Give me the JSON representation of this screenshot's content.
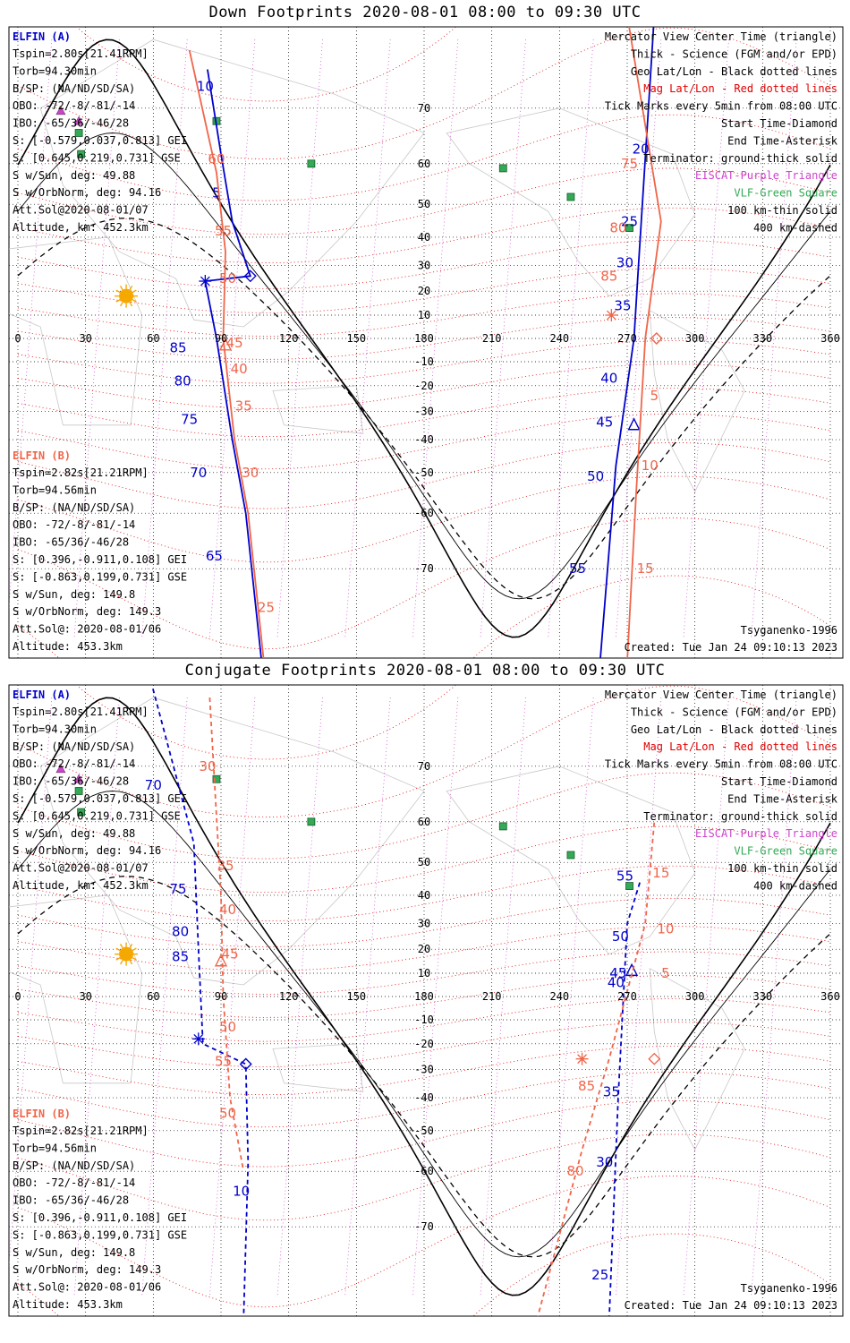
{
  "colors": {
    "elfin_a": "#0000cc",
    "elfin_b": "#f0654a",
    "mag_grid": "#e00000",
    "eiscat": "#cc44cc",
    "vlf": "#33aa55",
    "sun": "#f5a800",
    "geo_grid": "#000000"
  },
  "left_info_a": {
    "title": "ELFIN (A)",
    "lines": [
      "Tspin=2.80s[21.41RPM]",
      "Torb=94.30min",
      "B/SP: (NA/ND/SD/SA)",
      "OBO: -72/-8/-81/-14",
      "IBO: -65/36/-46/28",
      "S: [-0.579,0.037,0.813] GEI",
      "S: [0.645,0.219,0.731] GSE",
      "S w/Sun, deg: 49.88",
      "S w/OrbNorm, deg: 94.16",
      "Att.Sol@2020-08-01/07",
      "Altitude, km: 452.3km"
    ]
  },
  "left_info_b": {
    "title": "ELFIN (B)",
    "lines": [
      "Tspin=2.82s[21.21RPM]",
      "Torb=94.56min",
      "B/SP: (NA/ND/SD/SA)",
      "OBO: -72/-8/-81/-14",
      "IBO: -65/36/-46/28",
      "S: [0.396,-0.911,0.108] GEI",
      "S: [-0.863,0.199,0.731] GSE",
      "S w/Sun, deg: 149.8",
      "S w/OrbNorm, deg: 149.3",
      "Att.Sol@: 2020-08-01/06",
      "Altitude: 453.3km"
    ]
  },
  "legend": [
    {
      "text": "Mercator View Center Time (triangle)",
      "color": "#000000"
    },
    {
      "text": "Thick - Science (FGM and/or EPD)",
      "color": "#000000"
    },
    {
      "text": "Geo Lat/Lon - Black dotted lines",
      "color": "#000000"
    },
    {
      "text": "Mag Lat/Lon - Red dotted lines",
      "color": "#e00000"
    },
    {
      "text": "Tick Marks every 5min from 08:00 UTC",
      "color": "#000000"
    },
    {
      "text": "Start Time-Diamond",
      "color": "#000000"
    },
    {
      "text": "End Time-Asterisk",
      "color": "#000000"
    },
    {
      "text": "Terminator: ground-thick solid",
      "color": "#000000"
    },
    {
      "text": "EISCAT-Purple Triangle",
      "color": "#cc44cc"
    },
    {
      "text": "VLF-Green Square",
      "color": "#33aa55"
    },
    {
      "text": "100 km-thin solid",
      "color": "#000000"
    },
    {
      "text": "400 km-dashed",
      "color": "#000000"
    }
  ],
  "model_label": "Tsyganenko-1996",
  "created_label": "Created: Tue Jan 24 09:10:13 2023",
  "chart_data": [
    {
      "type": "map",
      "title": "Down Footprints 2020-08-01 08:00 to 09:30 UTC",
      "projection": "mercator",
      "xlim": [
        0,
        360
      ],
      "ylim": [
        -80,
        80
      ],
      "lon_ticks": [
        0,
        30,
        60,
        90,
        120,
        150,
        180,
        210,
        240,
        270,
        300,
        330,
        360
      ],
      "lat_ticks": [
        70,
        60,
        50,
        40,
        30,
        20,
        10,
        -10,
        -20,
        -30,
        -40,
        -50,
        -60,
        -70
      ],
      "vlf_sites": [
        [
          88,
          68
        ],
        [
          27,
          66
        ],
        [
          28,
          62
        ],
        [
          130,
          60
        ],
        [
          215,
          59
        ],
        [
          245,
          52
        ],
        [
          271,
          43
        ]
      ],
      "eiscat_sites": [
        [
          19,
          69.6
        ],
        [
          27,
          68
        ]
      ],
      "sun": [
        48,
        18
      ],
      "elfin_a": {
        "track": [
          [
            84,
            75
          ],
          [
            90,
            62
          ],
          [
            95,
            45
          ],
          [
            103,
            26
          ],
          [
            83,
            24
          ],
          [
            88,
            0
          ],
          [
            95,
            -40
          ],
          [
            101,
            -60
          ],
          [
            108,
            -80
          ],
          [
            258,
            -80
          ],
          [
            265,
            -48
          ],
          [
            273,
            0
          ],
          [
            275,
            30
          ],
          [
            282,
            80
          ]
        ],
        "tick_labels": [
          {
            "t": "10",
            "lon": 83,
            "lat": 73
          },
          {
            "t": "5",
            "lon": 88,
            "lat": 53
          },
          {
            "t": "85",
            "lon": 71,
            "lat": -4
          },
          {
            "t": "80",
            "lon": 73,
            "lat": -18
          },
          {
            "t": "75",
            "lon": 76,
            "lat": -33
          },
          {
            "t": "70",
            "lon": 80,
            "lat": -50
          },
          {
            "t": "65",
            "lon": 87,
            "lat": -68
          },
          {
            "t": "55",
            "lon": 248,
            "lat": -70
          },
          {
            "t": "50",
            "lon": 256,
            "lat": -51
          },
          {
            "t": "45",
            "lon": 260,
            "lat": -34
          },
          {
            "t": "40",
            "lon": 262,
            "lat": -17
          },
          {
            "t": "35",
            "lon": 268,
            "lat": 14
          },
          {
            "t": "30",
            "lon": 269,
            "lat": 31
          },
          {
            "t": "25",
            "lon": 271,
            "lat": 45
          },
          {
            "t": "20",
            "lon": 276,
            "lat": 63
          }
        ],
        "start": [
          103,
          26
        ],
        "end": [
          83,
          24
        ],
        "center": [
          273,
          -35
        ]
      },
      "elfin_b": {
        "track": [
          [
            76,
            77
          ],
          [
            88,
            58
          ],
          [
            92,
            35
          ],
          [
            91,
            0
          ],
          [
            96,
            -40
          ],
          [
            102,
            -60
          ],
          [
            109,
            -80
          ],
          [
            270,
            -80
          ],
          [
            274,
            -55
          ],
          [
            278,
            0
          ],
          [
            285,
            45
          ],
          [
            270,
            80
          ]
        ],
        "tick_labels": [
          {
            "t": "60",
            "lon": 88,
            "lat": 61
          },
          {
            "t": "55",
            "lon": 91,
            "lat": 42
          },
          {
            "t": "50",
            "lon": 93,
            "lat": 25
          },
          {
            "t": "45",
            "lon": 96,
            "lat": -2
          },
          {
            "t": "40",
            "lon": 98,
            "lat": -13
          },
          {
            "t": "35",
            "lon": 100,
            "lat": -28
          },
          {
            "t": "30",
            "lon": 103,
            "lat": -50
          },
          {
            "t": "25",
            "lon": 110,
            "lat": -75
          },
          {
            "t": "15",
            "lon": 278,
            "lat": -70
          },
          {
            "t": "10",
            "lon": 280,
            "lat": -48
          },
          {
            "t": "5",
            "lon": 282,
            "lat": -24
          },
          {
            "t": "85",
            "lon": 262,
            "lat": 26
          },
          {
            "t": "80",
            "lon": 266,
            "lat": 43
          },
          {
            "t": "75",
            "lon": 271,
            "lat": 60
          }
        ],
        "start": [
          283,
          0
        ],
        "end": [
          263,
          10
        ],
        "center": [
          92,
          -3
        ]
      }
    },
    {
      "type": "map",
      "title": "Conjugate Footprints 2020-08-01 08:00 to 09:30 UTC",
      "projection": "mercator",
      "xlim": [
        0,
        360
      ],
      "ylim": [
        -80,
        80
      ],
      "lon_ticks": [
        0,
        30,
        60,
        90,
        120,
        150,
        180,
        210,
        240,
        270,
        300,
        330,
        360
      ],
      "lat_ticks": [
        70,
        60,
        50,
        40,
        30,
        20,
        10,
        -10,
        -20,
        -30,
        -40,
        -50,
        -60,
        -70
      ],
      "vlf_sites": [
        [
          88,
          68
        ],
        [
          27,
          66
        ],
        [
          28,
          62
        ],
        [
          130,
          60
        ],
        [
          215,
          59
        ],
        [
          245,
          52
        ],
        [
          271,
          43
        ]
      ],
      "eiscat_sites": [
        [
          19,
          69.6
        ],
        [
          27,
          68
        ]
      ],
      "sun": [
        48,
        18
      ],
      "elfin_a": {
        "track": [
          [
            58,
            80
          ],
          [
            78,
            55
          ],
          [
            80,
            20
          ],
          [
            82,
            -20
          ],
          [
            101,
            -28
          ],
          [
            102,
            -58
          ],
          [
            100,
            -80
          ],
          [
            262,
            -80
          ],
          [
            266,
            -40
          ],
          [
            270,
            30
          ],
          [
            276,
            45
          ]
        ],
        "tick_labels": [
          {
            "t": "70",
            "lon": 60,
            "lat": 67
          },
          {
            "t": "75",
            "lon": 71,
            "lat": 42
          },
          {
            "t": "80",
            "lon": 72,
            "lat": 27
          },
          {
            "t": "85",
            "lon": 72,
            "lat": 17
          },
          {
            "t": "10",
            "lon": 99,
            "lat": -64
          },
          {
            "t": "25",
            "lon": 258,
            "lat": -76
          },
          {
            "t": "30",
            "lon": 260,
            "lat": -58
          },
          {
            "t": "35",
            "lon": 263,
            "lat": -38
          },
          {
            "t": "40",
            "lon": 265,
            "lat": 6
          },
          {
            "t": "45",
            "lon": 266,
            "lat": 10
          },
          {
            "t": "50",
            "lon": 267,
            "lat": 25
          },
          {
            "t": "55",
            "lon": 269,
            "lat": 46
          }
        ],
        "start": [
          101,
          -28
        ],
        "end": [
          80,
          -18
        ],
        "center": [
          272,
          11
        ]
      },
      "elfin_b": {
        "track": [
          [
            85,
            78
          ],
          [
            90,
            40
          ],
          [
            91,
            0
          ],
          [
            94,
            -40
          ],
          [
            100,
            -60
          ],
          [
            230,
            -80
          ],
          [
            250,
            -55
          ],
          [
            262,
            -26
          ],
          [
            278,
            30
          ],
          [
            282,
            60
          ]
        ],
        "tick_labels": [
          {
            "t": "30",
            "lon": 84,
            "lat": 70
          },
          {
            "t": "35",
            "lon": 92,
            "lat": 49
          },
          {
            "t": "40",
            "lon": 93,
            "lat": 35
          },
          {
            "t": "45",
            "lon": 94,
            "lat": 18
          },
          {
            "t": "50",
            "lon": 93,
            "lat": -13
          },
          {
            "t": "55",
            "lon": 91,
            "lat": -27
          },
          {
            "t": "50",
            "lon": 93,
            "lat": -45
          },
          {
            "t": "85",
            "lon": 252,
            "lat": -36
          },
          {
            "t": "80",
            "lon": 247,
            "lat": -60
          },
          {
            "t": "15",
            "lon": 285,
            "lat": 47
          },
          {
            "t": "10",
            "lon": 287,
            "lat": 28
          },
          {
            "t": "5",
            "lon": 287,
            "lat": 10
          }
        ],
        "start": [
          282,
          -26
        ],
        "end": [
          250,
          -26
        ],
        "center": [
          90,
          15
        ]
      }
    }
  ]
}
